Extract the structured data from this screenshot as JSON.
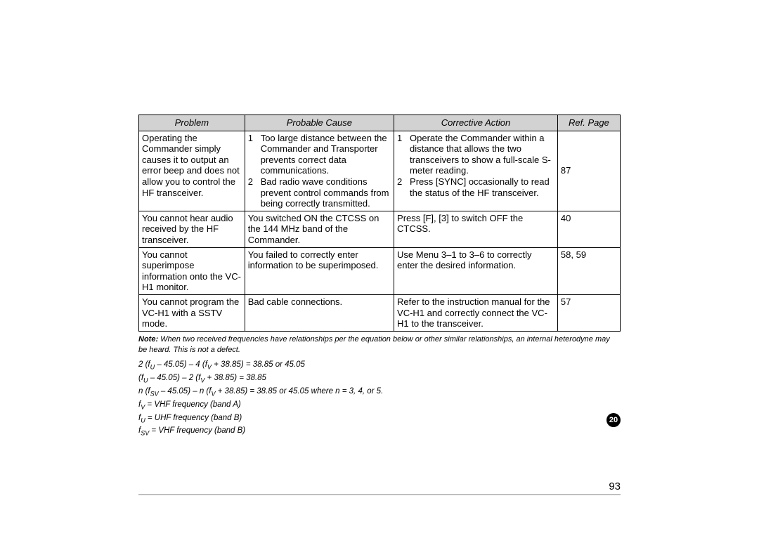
{
  "table": {
    "headers": {
      "problem": "Problem",
      "cause": "Probable Cause",
      "action": "Corrective Action",
      "page": "Ref. Page"
    },
    "rows": [
      {
        "problem": "Operating the Commander simply causes it to output an error beep and does not allow you to control the HF transceiver.",
        "cause1_n": "1",
        "cause1_t": "Too large distance between the Commander and Transporter prevents correct data communications.",
        "cause2_n": "2",
        "cause2_t": "Bad radio wave conditions prevent control commands from being correctly transmitted.",
        "action1_n": "1",
        "action1_t": "Operate the Commander within a distance that allows the two transceivers to show a full-scale S-meter reading.",
        "action2_n": "2",
        "action2_t": "Press [SYNC] occasionally to read the status of the HF transceiver.",
        "page": "87"
      },
      {
        "problem": "You cannot hear audio received by the HF transceiver.",
        "cause": "You switched ON the CTCSS on the 144 MHz band of the Commander.",
        "action": "Press [F], [3] to switch OFF the CTCSS.",
        "page": "40"
      },
      {
        "problem": "You cannot superimpose information onto the VC-H1 monitor.",
        "cause": "You failed to correctly enter information to be superimposed.",
        "action": "Use Menu 3–1 to 3–6 to correctly enter the desired information.",
        "page": "58, 59"
      },
      {
        "problem": "You cannot program the VC-H1 with a SSTV mode.",
        "cause": "Bad cable connections.",
        "action": "Refer to the instruction manual for the VC-H1 and correctly connect the VC-H1 to the transceiver.",
        "page": "57"
      }
    ]
  },
  "note": {
    "label": "Note:",
    "text": "When two received frequencies have relationships per the equation below or other similar relationships, an internal heterodyne may be heard. This is not a defect."
  },
  "equations": {
    "e1a": "2 (f",
    "e1b": " – 45.05) – 4 (f",
    "e1c": " + 38.85) = 38.85 or 45.05",
    "e2a": "(f",
    "e2b": " – 45.05) – 2 (f",
    "e2c": " + 38.85) = 38.85",
    "e3a": "n (f",
    "e3b": " – 45.05) – n (f",
    "e3c": " + 38.85) = 38.85 or 45.05 where n = 3, 4, or 5.",
    "d1a": "f",
    "d1b": " = VHF frequency (band A)",
    "d2a": "f",
    "d2b": " = UHF frequency (band B)",
    "d3a": "f",
    "d3b": " = VHF frequency (band B)",
    "subU": "U",
    "subV": "V",
    "subSV": "SV"
  },
  "sectionBadge": "20",
  "pageNumber": "93"
}
